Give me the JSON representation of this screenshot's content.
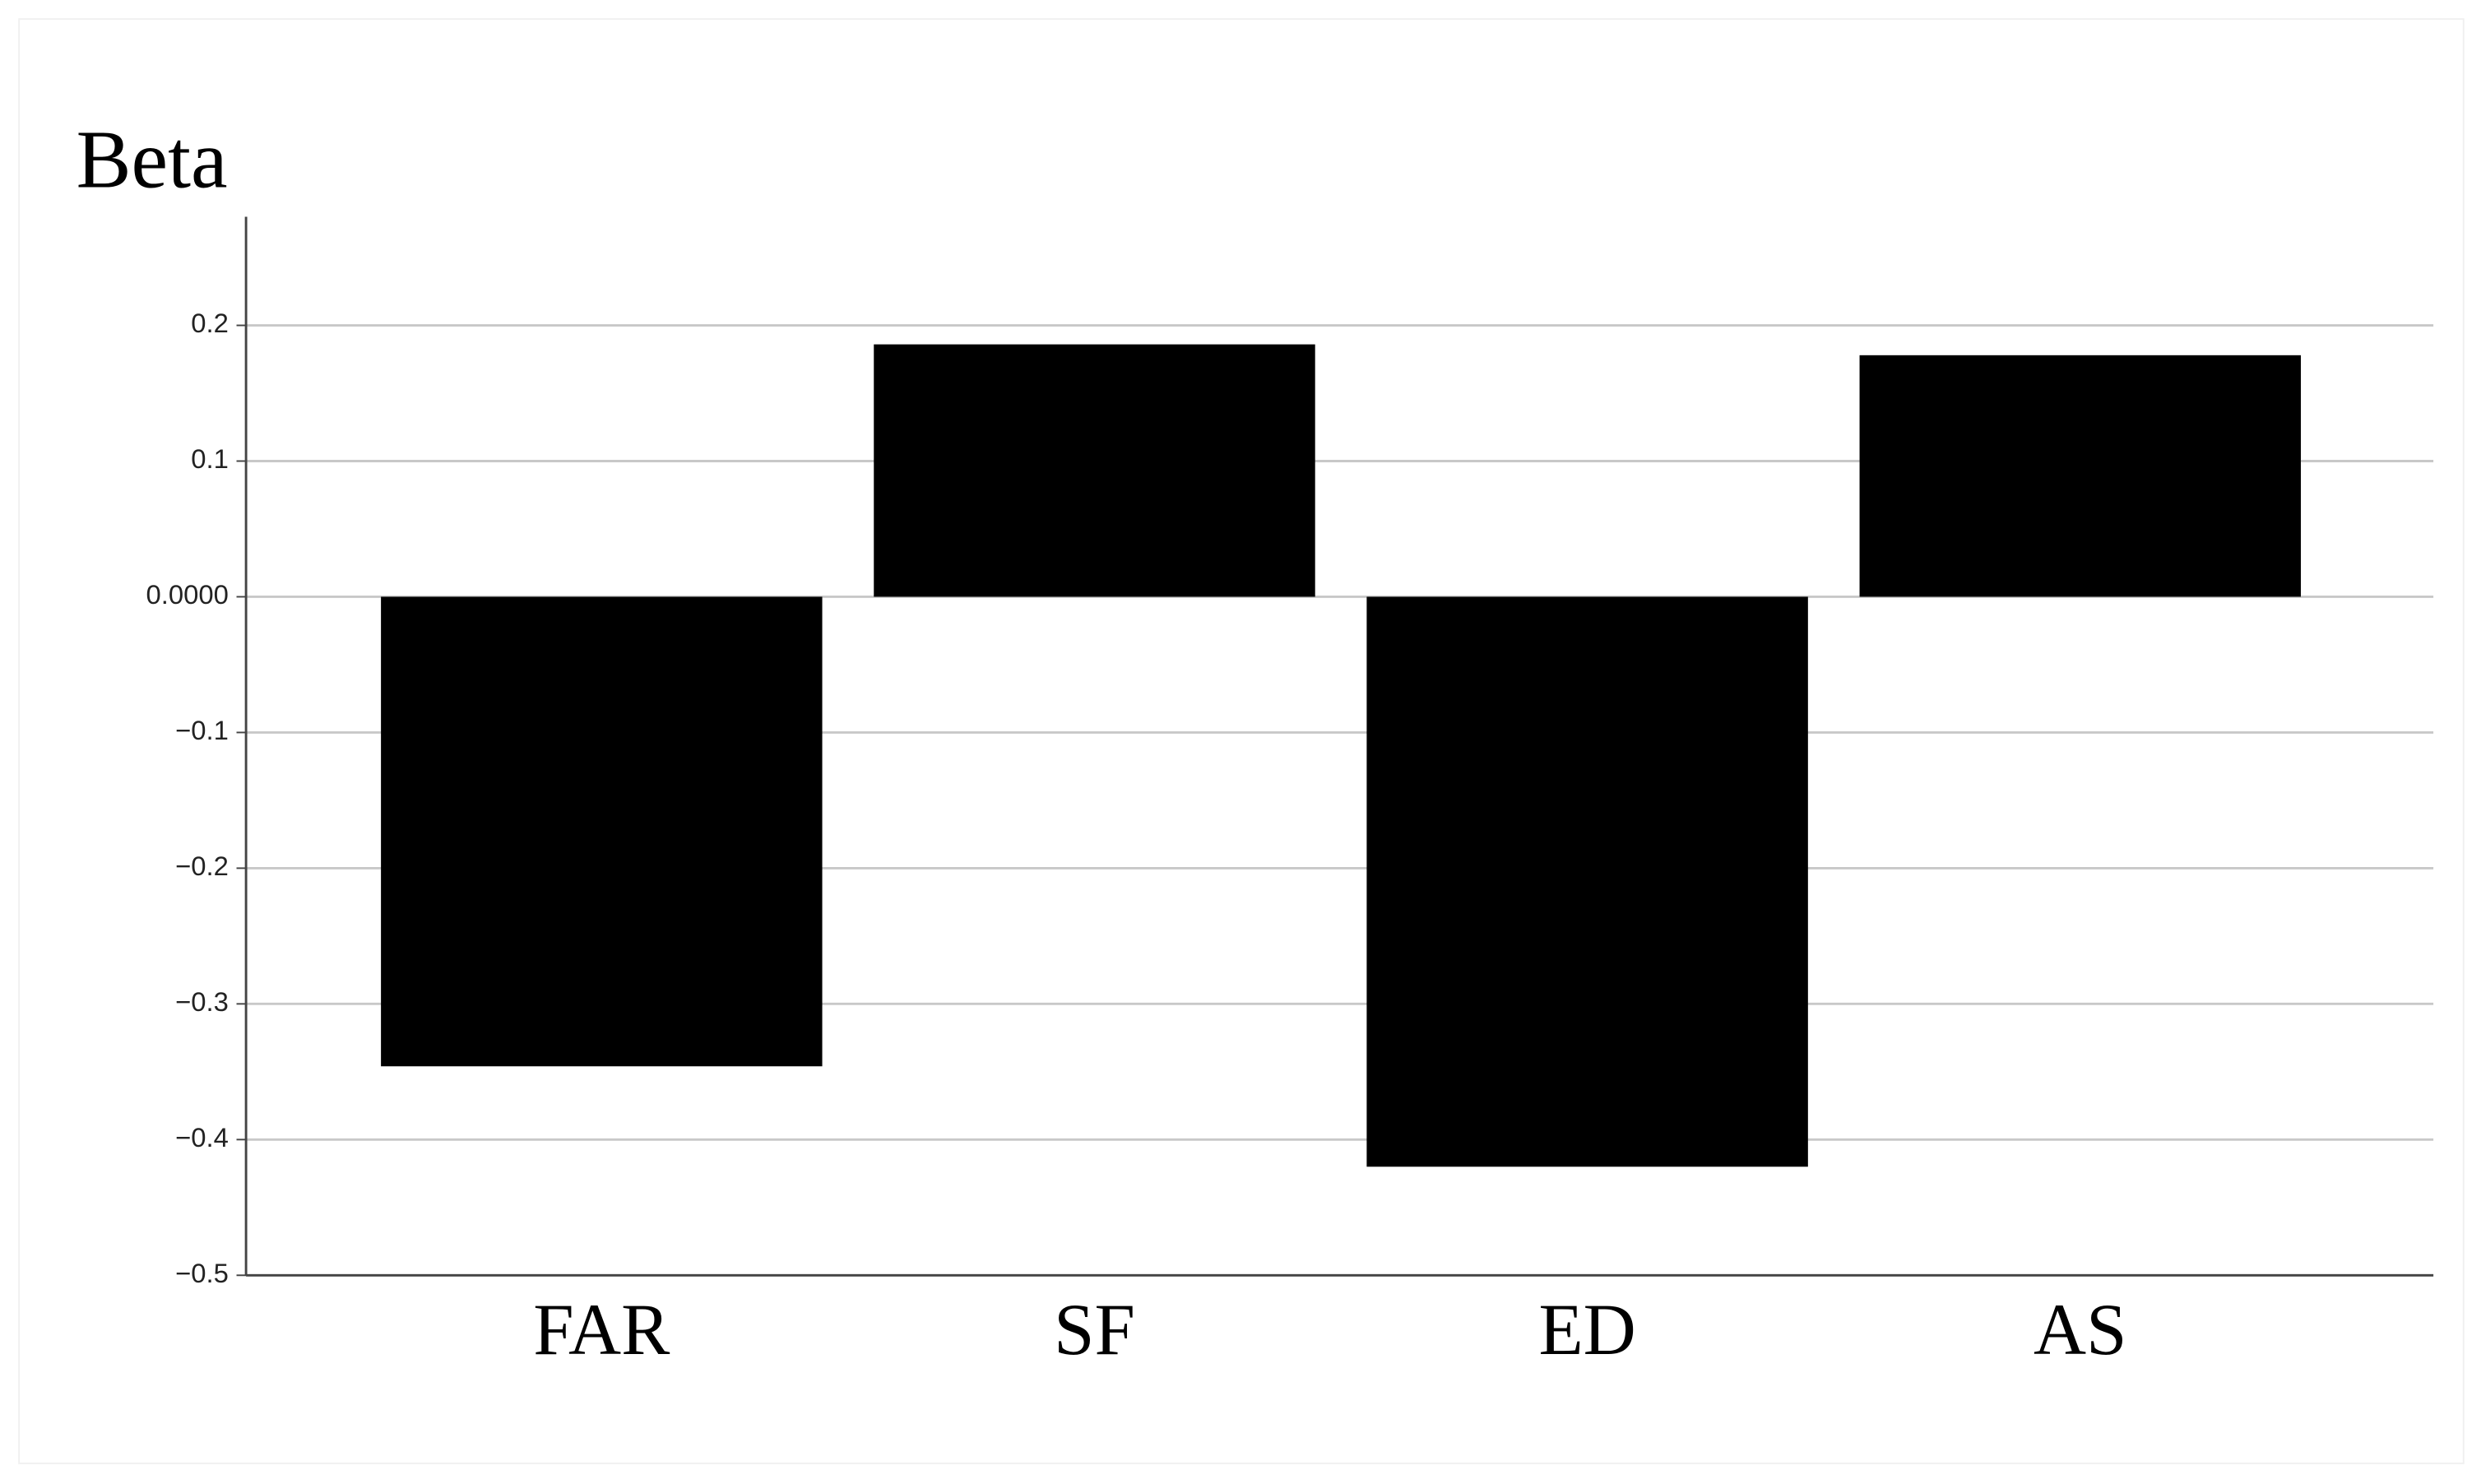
{
  "chart_data": {
    "type": "bar",
    "title": "Beta",
    "categories": [
      "FAR",
      "SF",
      "ED",
      "AS"
    ],
    "values": [
      -0.346,
      0.186,
      -0.42,
      0.178
    ],
    "color": "#000000",
    "ylim": [
      -0.5,
      0.28
    ],
    "yticks": [
      {
        "value": -0.5,
        "label": "−0.5"
      },
      {
        "value": -0.4,
        "label": "−0.4"
      },
      {
        "value": -0.3,
        "label": "−0.3"
      },
      {
        "value": -0.2,
        "label": "−0.2"
      },
      {
        "value": -0.1,
        "label": "−0.1"
      },
      {
        "value": 0,
        "label": "0.0000"
      },
      0.1,
      0.2
    ],
    "grid": true
  }
}
